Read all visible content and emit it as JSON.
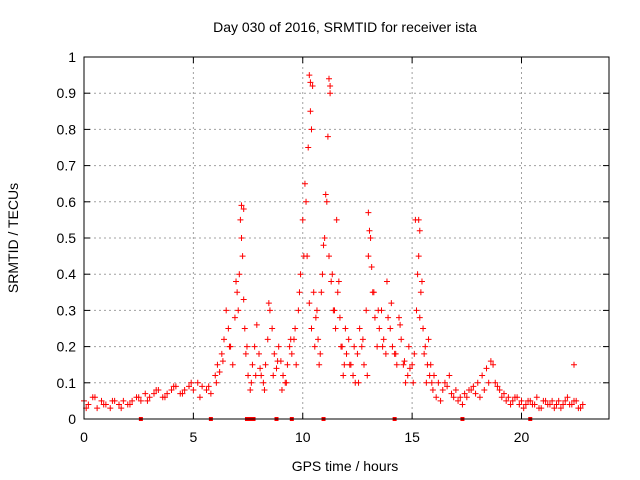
{
  "chart_data": {
    "type": "scatter",
    "title": "Day 030 of 2016, SRMTID for receiver ista",
    "xlabel": "GPS time / hours",
    "ylabel": "SRMTID / TECUs",
    "xlim": [
      0,
      24
    ],
    "ylim": [
      0,
      1
    ],
    "xticks": [
      0,
      5,
      10,
      15,
      20
    ],
    "xtick_labels": [
      "0",
      "5",
      "10",
      "15",
      "20"
    ],
    "yticks": [
      0,
      0.1,
      0.2,
      0.3,
      0.4,
      0.5,
      0.6,
      0.7,
      0.8,
      0.9,
      1
    ],
    "ytick_labels": [
      "0",
      "0.1",
      "0.2",
      "0.3",
      "0.4",
      "0.5",
      "0.6",
      "0.7",
      "0.8",
      "0.9",
      "1"
    ],
    "grid": true,
    "marker": "+",
    "color": "#ff0000",
    "series": [
      {
        "name": "SRMTID",
        "x": [
          0.0,
          0.2,
          0.4,
          0.6,
          0.8,
          1.0,
          1.2,
          1.4,
          1.6,
          1.8,
          2.0,
          2.2,
          2.4,
          2.6,
          2.8,
          3.0,
          3.2,
          3.4,
          3.6,
          3.8,
          4.0,
          4.2,
          4.4,
          4.6,
          4.8,
          5.0,
          5.2,
          5.4,
          5.6,
          5.8,
          6.0,
          6.1,
          6.2,
          6.3,
          6.4,
          6.5,
          6.6,
          6.7,
          6.8,
          6.9,
          7.0,
          7.1,
          7.2,
          7.3,
          7.4,
          7.5,
          7.6,
          7.7,
          7.8,
          7.9,
          8.0,
          8.1,
          8.2,
          8.3,
          8.4,
          8.5,
          8.6,
          8.7,
          8.8,
          8.9,
          9.0,
          9.1,
          9.2,
          9.3,
          9.4,
          9.5,
          9.6,
          9.7,
          9.8,
          9.9,
          10.0,
          10.1,
          10.2,
          10.3,
          10.4,
          10.5,
          10.6,
          10.7,
          10.8,
          10.9,
          11.0,
          11.1,
          11.2,
          11.3,
          11.4,
          11.5,
          11.6,
          11.7,
          11.8,
          11.9,
          12.0,
          12.1,
          12.2,
          12.3,
          12.4,
          12.5,
          12.6,
          12.7,
          12.8,
          12.9,
          13.0,
          13.1,
          13.2,
          13.3,
          13.4,
          13.5,
          13.6,
          13.7,
          13.8,
          13.9,
          14.0,
          14.1,
          14.2,
          14.3,
          14.4,
          14.5,
          14.6,
          14.7,
          14.8,
          14.9,
          15.0,
          15.1,
          15.2,
          15.3,
          15.4,
          15.5,
          15.6,
          15.7,
          15.8,
          15.9,
          16.0,
          16.2,
          16.4,
          16.6,
          16.8,
          17.0,
          17.2,
          17.4,
          17.6,
          17.8,
          18.0,
          18.2,
          18.4,
          18.6,
          18.8,
          19.0,
          19.2,
          19.4,
          19.6,
          19.8,
          20.0,
          20.2,
          20.4,
          20.6,
          20.8,
          21.0,
          21.2,
          21.4,
          21.6,
          21.8,
          22.0,
          22.2,
          22.4,
          22.6,
          22.8,
          0.1,
          0.5,
          0.9,
          1.3,
          1.7,
          2.1,
          2.5,
          2.9,
          3.3,
          3.7,
          4.1,
          4.5,
          4.9,
          5.3,
          5.7,
          6.05,
          6.35,
          6.65,
          6.95,
          7.15,
          7.25,
          7.35,
          7.05,
          7.45,
          7.65,
          7.85,
          8.05,
          8.25,
          8.45,
          8.65,
          8.85,
          9.05,
          9.25,
          9.45,
          9.65,
          9.85,
          10.05,
          10.15,
          10.25,
          10.35,
          10.45,
          10.55,
          10.65,
          10.75,
          10.85,
          10.95,
          11.05,
          11.15,
          11.25,
          11.35,
          11.45,
          11.55,
          11.65,
          11.75,
          11.85,
          11.95,
          12.15,
          12.35,
          12.55,
          12.75,
          12.95,
          13.05,
          13.15,
          13.25,
          13.45,
          13.65,
          13.85,
          14.05,
          14.25,
          14.45,
          14.65,
          14.85,
          15.05,
          15.15,
          15.25,
          15.35,
          15.45,
          15.55,
          15.65,
          15.75,
          15.85,
          15.95,
          16.1,
          16.3,
          16.5,
          16.7,
          16.9,
          17.1,
          17.3,
          17.5,
          17.7,
          17.9,
          18.1,
          18.3,
          18.5,
          18.7,
          18.9,
          19.1,
          19.3,
          19.5,
          19.7,
          19.9,
          20.1,
          20.3,
          20.5,
          20.7,
          20.9,
          21.1,
          21.3,
          21.5,
          21.7,
          21.9,
          22.1,
          22.3,
          22.5,
          22.7,
          7.2,
          7.3,
          10.3,
          10.35,
          11.2,
          11.25,
          10.4,
          13.0,
          15.3,
          15.35,
          22.4
        ],
        "y": [
          0.05,
          0.04,
          0.06,
          0.03,
          0.05,
          0.04,
          0.03,
          0.05,
          0.04,
          0.05,
          0.04,
          0.05,
          0.06,
          0.05,
          0.07,
          0.06,
          0.07,
          0.08,
          0.06,
          0.07,
          0.08,
          0.09,
          0.07,
          0.08,
          0.09,
          0.08,
          0.1,
          0.09,
          0.08,
          0.07,
          0.12,
          0.15,
          0.13,
          0.18,
          0.22,
          0.3,
          0.25,
          0.2,
          0.15,
          0.28,
          0.35,
          0.4,
          0.5,
          0.33,
          0.18,
          0.12,
          0.08,
          0.15,
          0.2,
          0.26,
          0.18,
          0.12,
          0.1,
          0.15,
          0.22,
          0.3,
          0.25,
          0.18,
          0.14,
          0.2,
          0.16,
          0.12,
          0.1,
          0.15,
          0.2,
          0.18,
          0.22,
          0.15,
          0.3,
          0.4,
          0.55,
          0.65,
          0.45,
          0.32,
          0.25,
          0.35,
          0.28,
          0.22,
          0.18,
          0.4,
          0.5,
          0.6,
          0.45,
          0.38,
          0.3,
          0.25,
          0.35,
          0.28,
          0.2,
          0.15,
          0.18,
          0.22,
          0.15,
          0.12,
          0.1,
          0.18,
          0.25,
          0.2,
          0.15,
          0.3,
          0.45,
          0.5,
          0.35,
          0.28,
          0.2,
          0.25,
          0.3,
          0.22,
          0.18,
          0.28,
          0.25,
          0.2,
          0.18,
          0.15,
          0.28,
          0.22,
          0.15,
          0.1,
          0.12,
          0.14,
          0.15,
          0.18,
          0.3,
          0.45,
          0.35,
          0.25,
          0.2,
          0.15,
          0.12,
          0.1,
          0.12,
          0.1,
          0.08,
          0.09,
          0.07,
          0.08,
          0.06,
          0.07,
          0.08,
          0.09,
          0.1,
          0.12,
          0.14,
          0.16,
          0.1,
          0.08,
          0.07,
          0.06,
          0.05,
          0.06,
          0.05,
          0.04,
          0.05,
          0.04,
          0.03,
          0.05,
          0.04,
          0.05,
          0.04,
          0.03,
          0.05,
          0.04,
          0.05,
          0.03,
          0.04,
          0.03,
          0.06,
          0.04,
          0.05,
          0.03,
          0.04,
          0.06,
          0.05,
          0.08,
          0.06,
          0.09,
          0.07,
          0.1,
          0.06,
          0.09,
          0.1,
          0.16,
          0.2,
          0.38,
          0.55,
          0.45,
          0.25,
          0.3,
          0.2,
          0.1,
          0.12,
          0.14,
          0.08,
          0.32,
          0.12,
          0.16,
          0.08,
          0.1,
          0.22,
          0.25,
          0.35,
          0.45,
          0.6,
          0.75,
          0.85,
          0.92,
          0.2,
          0.3,
          0.15,
          0.35,
          0.48,
          0.62,
          0.78,
          0.9,
          0.4,
          0.3,
          0.55,
          0.38,
          0.2,
          0.12,
          0.25,
          0.15,
          0.2,
          0.1,
          0.22,
          0.12,
          0.52,
          0.42,
          0.35,
          0.3,
          0.2,
          0.38,
          0.32,
          0.18,
          0.26,
          0.16,
          0.2,
          0.1,
          0.55,
          0.4,
          0.28,
          0.38,
          0.18,
          0.1,
          0.22,
          0.15,
          0.08,
          0.06,
          0.05,
          0.1,
          0.12,
          0.06,
          0.05,
          0.04,
          0.06,
          0.08,
          0.07,
          0.06,
          0.08,
          0.1,
          0.15,
          0.09,
          0.06,
          0.05,
          0.04,
          0.06,
          0.04,
          0.03,
          0.05,
          0.04,
          0.06,
          0.03,
          0.05,
          0.04,
          0.03,
          0.05,
          0.04,
          0.06,
          0.04,
          0.05,
          0.03,
          0.59,
          0.58,
          0.95,
          0.93,
          0.94,
          0.92,
          0.8,
          0.57,
          0.55,
          0.52,
          0.15
        ]
      }
    ],
    "gap_markers_x": [
      2.6,
      5.8,
      7.45,
      7.6,
      7.75,
      8.8,
      9.5,
      10.95,
      14.2,
      17.3,
      20.4
    ]
  }
}
